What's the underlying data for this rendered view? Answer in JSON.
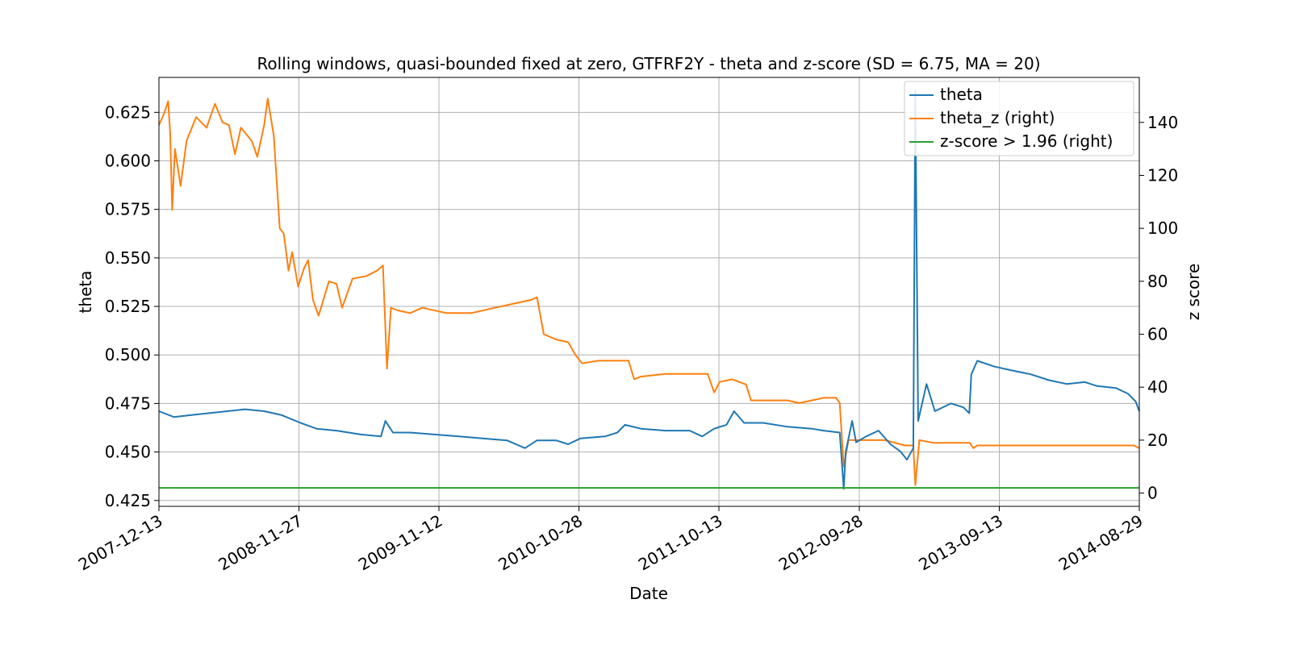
{
  "chart_data": {
    "type": "line",
    "title": "Rolling windows, quasi-bounded fixed at zero, GTFRF2Y - theta and z-score (SD = 6.75, MA = 20)",
    "xlabel": "Date",
    "ylabel_left": "theta",
    "ylabel_right": "z score",
    "x_range": [
      "2007-12-13",
      "2014-08-29"
    ],
    "x_ticks": [
      "2007-12-13",
      "2008-11-27",
      "2009-11-12",
      "2010-10-28",
      "2011-10-13",
      "2012-09-28",
      "2013-09-13",
      "2014-08-29"
    ],
    "ylim_left": [
      0.422,
      0.643
    ],
    "yticks_left": [
      "0.425",
      "0.450",
      "0.475",
      "0.500",
      "0.525",
      "0.550",
      "0.575",
      "0.600",
      "0.625"
    ],
    "ylim_right": [
      -5,
      157
    ],
    "yticks_right": [
      "0",
      "20",
      "40",
      "60",
      "80",
      "100",
      "120",
      "140"
    ],
    "grid": true,
    "legend_position": "top-right",
    "legend": [
      "theta",
      "theta_z (right)",
      "z-score > 1.96 (right)"
    ],
    "series": [
      {
        "name": "theta",
        "axis": "left",
        "color": "#1f77b4",
        "points": [
          [
            "2007-12-13",
            0.471
          ],
          [
            "2008-01-20",
            0.468
          ],
          [
            "2008-03-01",
            0.469
          ],
          [
            "2008-04-15",
            0.47
          ],
          [
            "2008-06-01",
            0.471
          ],
          [
            "2008-07-15",
            0.472
          ],
          [
            "2008-09-01",
            0.471
          ],
          [
            "2008-10-15",
            0.469
          ],
          [
            "2008-12-01",
            0.465
          ],
          [
            "2009-01-10",
            0.462
          ],
          [
            "2009-03-01",
            0.461
          ],
          [
            "2009-05-01",
            0.459
          ],
          [
            "2009-06-20",
            0.458
          ],
          [
            "2009-07-01",
            0.466
          ],
          [
            "2009-07-20",
            0.46
          ],
          [
            "2009-09-01",
            0.46
          ],
          [
            "2009-11-01",
            0.459
          ],
          [
            "2010-01-01",
            0.458
          ],
          [
            "2010-03-01",
            0.457
          ],
          [
            "2010-05-01",
            0.456
          ],
          [
            "2010-06-15",
            0.452
          ],
          [
            "2010-07-15",
            0.456
          ],
          [
            "2010-09-01",
            0.456
          ],
          [
            "2010-10-01",
            0.454
          ],
          [
            "2010-11-01",
            0.457
          ],
          [
            "2011-01-01",
            0.458
          ],
          [
            "2011-02-01",
            0.46
          ],
          [
            "2011-02-20",
            0.464
          ],
          [
            "2011-04-01",
            0.462
          ],
          [
            "2011-06-01",
            0.461
          ],
          [
            "2011-08-01",
            0.461
          ],
          [
            "2011-09-01",
            0.458
          ],
          [
            "2011-10-01",
            0.462
          ],
          [
            "2011-11-01",
            0.464
          ],
          [
            "2011-11-20",
            0.471
          ],
          [
            "2011-12-15",
            0.465
          ],
          [
            "2012-02-01",
            0.465
          ],
          [
            "2012-04-01",
            0.463
          ],
          [
            "2012-06-01",
            0.462
          ],
          [
            "2012-07-01",
            0.461
          ],
          [
            "2012-08-10",
            0.46
          ],
          [
            "2012-08-20",
            0.431
          ],
          [
            "2012-08-25",
            0.45
          ],
          [
            "2012-09-10",
            0.466
          ],
          [
            "2012-09-20",
            0.455
          ],
          [
            "2012-10-15",
            0.458
          ],
          [
            "2012-11-15",
            0.461
          ],
          [
            "2012-12-15",
            0.454
          ],
          [
            "2013-01-10",
            0.45
          ],
          [
            "2013-01-25",
            0.446
          ],
          [
            "2013-02-10",
            0.452
          ],
          [
            "2013-02-15",
            0.636
          ],
          [
            "2013-02-22",
            0.466
          ],
          [
            "2013-03-15",
            0.485
          ],
          [
            "2013-04-05",
            0.471
          ],
          [
            "2013-05-15",
            0.475
          ],
          [
            "2013-06-15",
            0.473
          ],
          [
            "2013-06-30",
            0.47
          ],
          [
            "2013-07-05",
            0.49
          ],
          [
            "2013-07-20",
            0.497
          ],
          [
            "2013-09-01",
            0.494
          ],
          [
            "2013-10-15",
            0.492
          ],
          [
            "2013-12-01",
            0.49
          ],
          [
            "2014-01-15",
            0.487
          ],
          [
            "2014-03-01",
            0.485
          ],
          [
            "2014-04-15",
            0.486
          ],
          [
            "2014-05-15",
            0.484
          ],
          [
            "2014-07-01",
            0.483
          ],
          [
            "2014-08-01",
            0.48
          ],
          [
            "2014-08-20",
            0.476
          ],
          [
            "2014-08-29",
            0.471
          ]
        ]
      },
      {
        "name": "theta_z (right)",
        "axis": "right",
        "color": "#ff7f0e",
        "points": [
          [
            "2007-12-13",
            139
          ],
          [
            "2007-12-25",
            143
          ],
          [
            "2008-01-05",
            148
          ],
          [
            "2008-01-10",
            136
          ],
          [
            "2008-01-15",
            107
          ],
          [
            "2008-01-22",
            130
          ],
          [
            "2008-02-05",
            116
          ],
          [
            "2008-02-20",
            133
          ],
          [
            "2008-03-15",
            142
          ],
          [
            "2008-04-10",
            138
          ],
          [
            "2008-05-01",
            147
          ],
          [
            "2008-05-20",
            140
          ],
          [
            "2008-06-05",
            139
          ],
          [
            "2008-06-20",
            128
          ],
          [
            "2008-07-05",
            138
          ],
          [
            "2008-08-01",
            133
          ],
          [
            "2008-08-15",
            127
          ],
          [
            "2008-09-01",
            139
          ],
          [
            "2008-09-10",
            149
          ],
          [
            "2008-09-25",
            135
          ],
          [
            "2008-10-10",
            100
          ],
          [
            "2008-10-20",
            98
          ],
          [
            "2008-11-01",
            84
          ],
          [
            "2008-11-10",
            91
          ],
          [
            "2008-11-25",
            78
          ],
          [
            "2008-12-10",
            85
          ],
          [
            "2008-12-20",
            88
          ],
          [
            "2009-01-01",
            73
          ],
          [
            "2009-01-15",
            67
          ],
          [
            "2009-02-10",
            80
          ],
          [
            "2009-03-01",
            79
          ],
          [
            "2009-03-15",
            70
          ],
          [
            "2009-04-10",
            81
          ],
          [
            "2009-05-15",
            82
          ],
          [
            "2009-06-10",
            84
          ],
          [
            "2009-06-25",
            86
          ],
          [
            "2009-07-05",
            47
          ],
          [
            "2009-07-15",
            70
          ],
          [
            "2009-08-01",
            69
          ],
          [
            "2009-09-01",
            68
          ],
          [
            "2009-10-01",
            70
          ],
          [
            "2009-12-01",
            68
          ],
          [
            "2010-02-01",
            68
          ],
          [
            "2010-04-01",
            70
          ],
          [
            "2010-06-01",
            72
          ],
          [
            "2010-07-01",
            73
          ],
          [
            "2010-07-15",
            74
          ],
          [
            "2010-08-01",
            60
          ],
          [
            "2010-09-01",
            58
          ],
          [
            "2010-10-01",
            57
          ],
          [
            "2010-10-20",
            52
          ],
          [
            "2010-11-05",
            49
          ],
          [
            "2010-12-15",
            50
          ],
          [
            "2011-02-01",
            50
          ],
          [
            "2011-03-01",
            50
          ],
          [
            "2011-03-15",
            43
          ],
          [
            "2011-04-01",
            44
          ],
          [
            "2011-06-01",
            45
          ],
          [
            "2011-08-01",
            45
          ],
          [
            "2011-09-15",
            45
          ],
          [
            "2011-10-01",
            38
          ],
          [
            "2011-10-15",
            42
          ],
          [
            "2011-11-15",
            43
          ],
          [
            "2011-12-20",
            41
          ],
          [
            "2012-01-01",
            35
          ],
          [
            "2012-02-01",
            35
          ],
          [
            "2012-04-01",
            35
          ],
          [
            "2012-05-01",
            34
          ],
          [
            "2012-06-01",
            35
          ],
          [
            "2012-07-01",
            36
          ],
          [
            "2012-08-01",
            36
          ],
          [
            "2012-08-10",
            34
          ],
          [
            "2012-08-20",
            10
          ],
          [
            "2012-09-01",
            20
          ],
          [
            "2012-10-01",
            20
          ],
          [
            "2012-12-01",
            20
          ],
          [
            "2013-01-20",
            18
          ],
          [
            "2013-02-10",
            18
          ],
          [
            "2013-02-15",
            3
          ],
          [
            "2013-02-25",
            20
          ],
          [
            "2013-04-01",
            19
          ],
          [
            "2013-06-01",
            19
          ],
          [
            "2013-07-01",
            19
          ],
          [
            "2013-07-10",
            17
          ],
          [
            "2013-07-20",
            18
          ],
          [
            "2013-10-01",
            18
          ],
          [
            "2014-01-01",
            18
          ],
          [
            "2014-04-01",
            18
          ],
          [
            "2014-08-15",
            18
          ],
          [
            "2014-08-29",
            17
          ]
        ]
      },
      {
        "name": "z-score > 1.96 (right)",
        "axis": "right",
        "color": "#2ca02c",
        "points": [
          [
            "2007-12-13",
            1.96
          ],
          [
            "2014-08-29",
            1.96
          ]
        ]
      }
    ]
  }
}
